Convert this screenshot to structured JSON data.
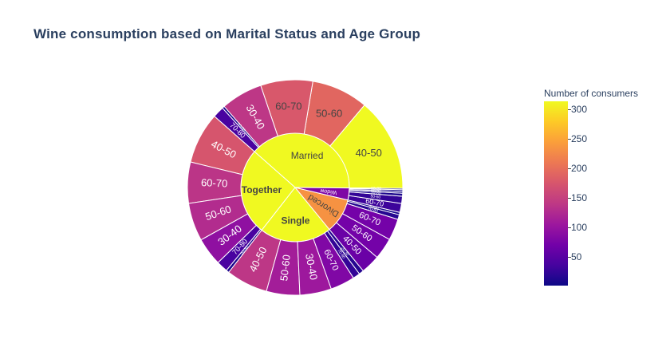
{
  "title": "Wine consumption based on Marital Status and Age Group",
  "colorbar": {
    "title": "Number of consumers",
    "ticks": [
      "300",
      "250",
      "200",
      "150",
      "100",
      "50"
    ],
    "tick_values": [
      300,
      250,
      200,
      150,
      100,
      50
    ],
    "range": [
      1,
      313
    ]
  },
  "chart_data": {
    "type": "sunburst",
    "color_scale": [
      "#0d0887",
      "#46039f",
      "#7201a8",
      "#9c179e",
      "#bd3786",
      "#d8576b",
      "#ed7953",
      "#fb9f3a",
      "#fdca26",
      "#f0f921"
    ],
    "groups": [
      {
        "name": "Married",
        "value": 864,
        "children": [
          {
            "name": "40-50",
            "value": 313
          },
          {
            "name": "50-60",
            "value": 190
          },
          {
            "name": "60-70",
            "value": 175
          },
          {
            "name": "30-40",
            "value": 140
          },
          {
            "name": "20-30",
            "value": 8
          },
          {
            "name": "70-80",
            "value": 38
          }
        ]
      },
      {
        "name": "Together",
        "value": 580,
        "children": [
          {
            "name": "40-50",
            "value": 172
          },
          {
            "name": "60-70",
            "value": 138
          },
          {
            "name": "50-60",
            "value": 128
          },
          {
            "name": "30-40",
            "value": 94
          },
          {
            "name": "70-80",
            "value": 38
          },
          {
            "name": "20-30",
            "value": 10
          }
        ]
      },
      {
        "name": "Single",
        "value": 480,
        "children": [
          {
            "name": "40-50",
            "value": 140
          },
          {
            "name": "50-60",
            "value": 112
          },
          {
            "name": "30-40",
            "value": 106
          },
          {
            "name": "60-70",
            "value": 82
          },
          {
            "name": "70-80",
            "value": 24
          },
          {
            "name": "20-30",
            "value": 16
          }
        ]
      },
      {
        "name": "Divorced",
        "value": 232,
        "children": [
          {
            "name": "40-50",
            "value": 64
          },
          {
            "name": "50-60",
            "value": 72
          },
          {
            "name": "60-70",
            "value": 72
          },
          {
            "name": "70-80",
            "value": 16
          },
          {
            "name": "30-40",
            "value": 8
          }
        ]
      },
      {
        "name": "Widow",
        "value": 80,
        "children": [
          {
            "name": "60-70",
            "value": 30
          },
          {
            "name": "50-60",
            "value": 24
          },
          {
            "name": "70-80",
            "value": 10
          },
          {
            "name": "40-50",
            "value": 6
          },
          {
            "name": "30-40",
            "value": 6
          },
          {
            "name": "20-30",
            "value": 4
          }
        ]
      }
    ]
  }
}
